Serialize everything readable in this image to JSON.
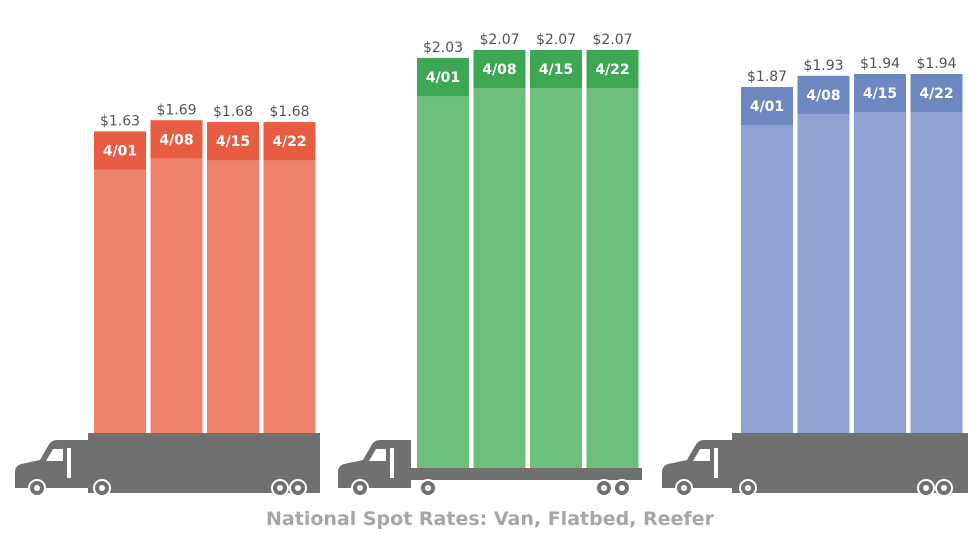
{
  "chart_data": {
    "type": "bar",
    "caption": "National Spot Rates: Van, Flatbed, Reefer",
    "ylim": [
      0,
      2.07
    ],
    "colors": {
      "truck": "#707070",
      "van_header": "#e85c41",
      "van_body": "#ef826b",
      "flatbed_header": "#3ea753",
      "flatbed_body": "#6dbf7b",
      "reefer_header": "#6d88c1",
      "reefer_body": "#8ea3cf"
    },
    "categories": [
      "4/01",
      "4/08",
      "4/15",
      "4/22"
    ],
    "series": [
      {
        "key": "van",
        "values": [
          1.63,
          1.69,
          1.68,
          1.68
        ],
        "labels": [
          "$1.63",
          "$1.69",
          "$1.68",
          "$1.68"
        ]
      },
      {
        "key": "flatbed",
        "values": [
          2.03,
          2.07,
          2.07,
          2.07
        ],
        "labels": [
          "$2.03",
          "$2.07",
          "$2.07",
          "$2.07"
        ]
      },
      {
        "key": "reefer",
        "values": [
          1.87,
          1.93,
          1.94,
          1.94
        ],
        "labels": [
          "$1.87",
          "$1.93",
          "$1.94",
          "$1.94"
        ]
      }
    ]
  }
}
